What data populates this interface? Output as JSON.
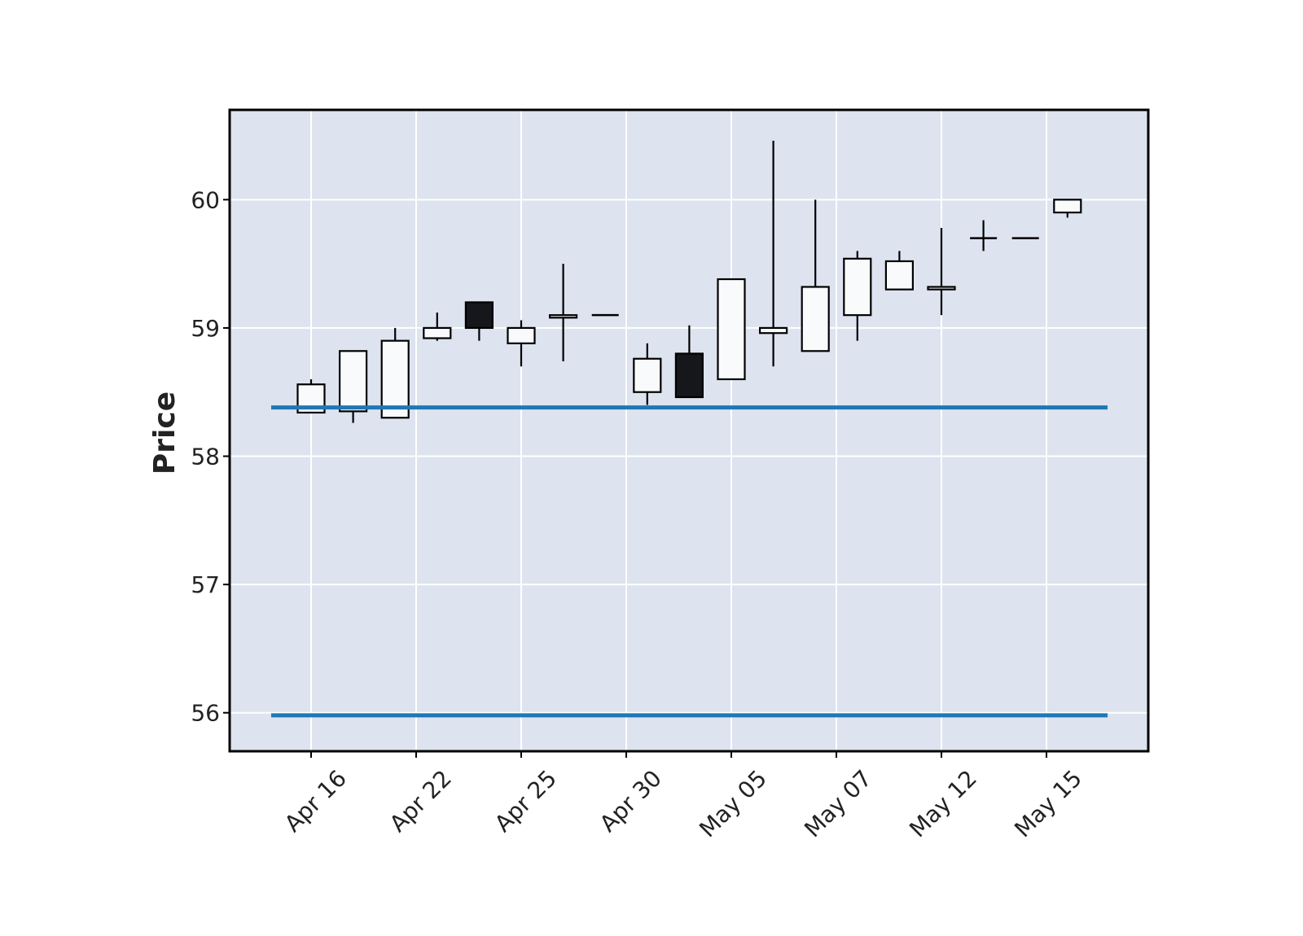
{
  "chart_data": {
    "type": "candlestick",
    "title": "",
    "xlabel": "",
    "ylabel": "Price",
    "ylim": [
      55.7,
      60.7
    ],
    "yticks": [
      56,
      57,
      58,
      59,
      60
    ],
    "xtick_labels": [
      "Apr 16",
      "Apr 22",
      "Apr 25",
      "Apr 30",
      "May 05",
      "May 07",
      "May 12",
      "May 15"
    ],
    "xtick_index": [
      0,
      2.5,
      5,
      7.5,
      10,
      12.5,
      15,
      17.5
    ],
    "grid": true,
    "colors": {
      "background": "#dde3ef",
      "up_fill": "#f8fafc",
      "down_fill": "#16171b",
      "edge": "#000000",
      "hline": "#1f77b4",
      "grid": "#ffffff"
    },
    "candles": [
      {
        "open": 58.34,
        "high": 58.6,
        "low": 58.34,
        "close": 58.56
      },
      {
        "open": 58.35,
        "high": 58.82,
        "low": 58.26,
        "close": 58.82
      },
      {
        "open": 58.3,
        "high": 59.0,
        "low": 58.3,
        "close": 58.9
      },
      {
        "open": 58.92,
        "high": 59.12,
        "low": 58.9,
        "close": 59.0
      },
      {
        "open": 59.2,
        "high": 59.2,
        "low": 58.9,
        "close": 59.0
      },
      {
        "open": 58.88,
        "high": 59.06,
        "low": 58.7,
        "close": 59.0
      },
      {
        "open": 59.08,
        "high": 59.5,
        "low": 58.74,
        "close": 59.1
      },
      {
        "open": 59.1,
        "high": 59.1,
        "low": 59.1,
        "close": 59.1
      },
      {
        "open": 58.5,
        "high": 58.88,
        "low": 58.4,
        "close": 58.76
      },
      {
        "open": 58.8,
        "high": 59.02,
        "low": 58.46,
        "close": 58.46
      },
      {
        "open": 58.6,
        "high": 59.38,
        "low": 58.6,
        "close": 59.38
      },
      {
        "open": 58.96,
        "high": 60.46,
        "low": 58.7,
        "close": 59.0
      },
      {
        "open": 58.82,
        "high": 60.0,
        "low": 58.82,
        "close": 59.32
      },
      {
        "open": 59.1,
        "high": 59.6,
        "low": 58.9,
        "close": 59.54
      },
      {
        "open": 59.3,
        "high": 59.6,
        "low": 59.3,
        "close": 59.52
      },
      {
        "open": 59.3,
        "high": 59.78,
        "low": 59.1,
        "close": 59.32
      },
      {
        "open": 59.7,
        "high": 59.84,
        "low": 59.6,
        "close": 59.7
      },
      {
        "open": 59.7,
        "high": 59.7,
        "low": 59.7,
        "close": 59.7
      },
      {
        "open": 59.9,
        "high": 60.0,
        "low": 59.86,
        "close": 60.0
      }
    ],
    "hlines": [
      58.38,
      55.98
    ]
  }
}
